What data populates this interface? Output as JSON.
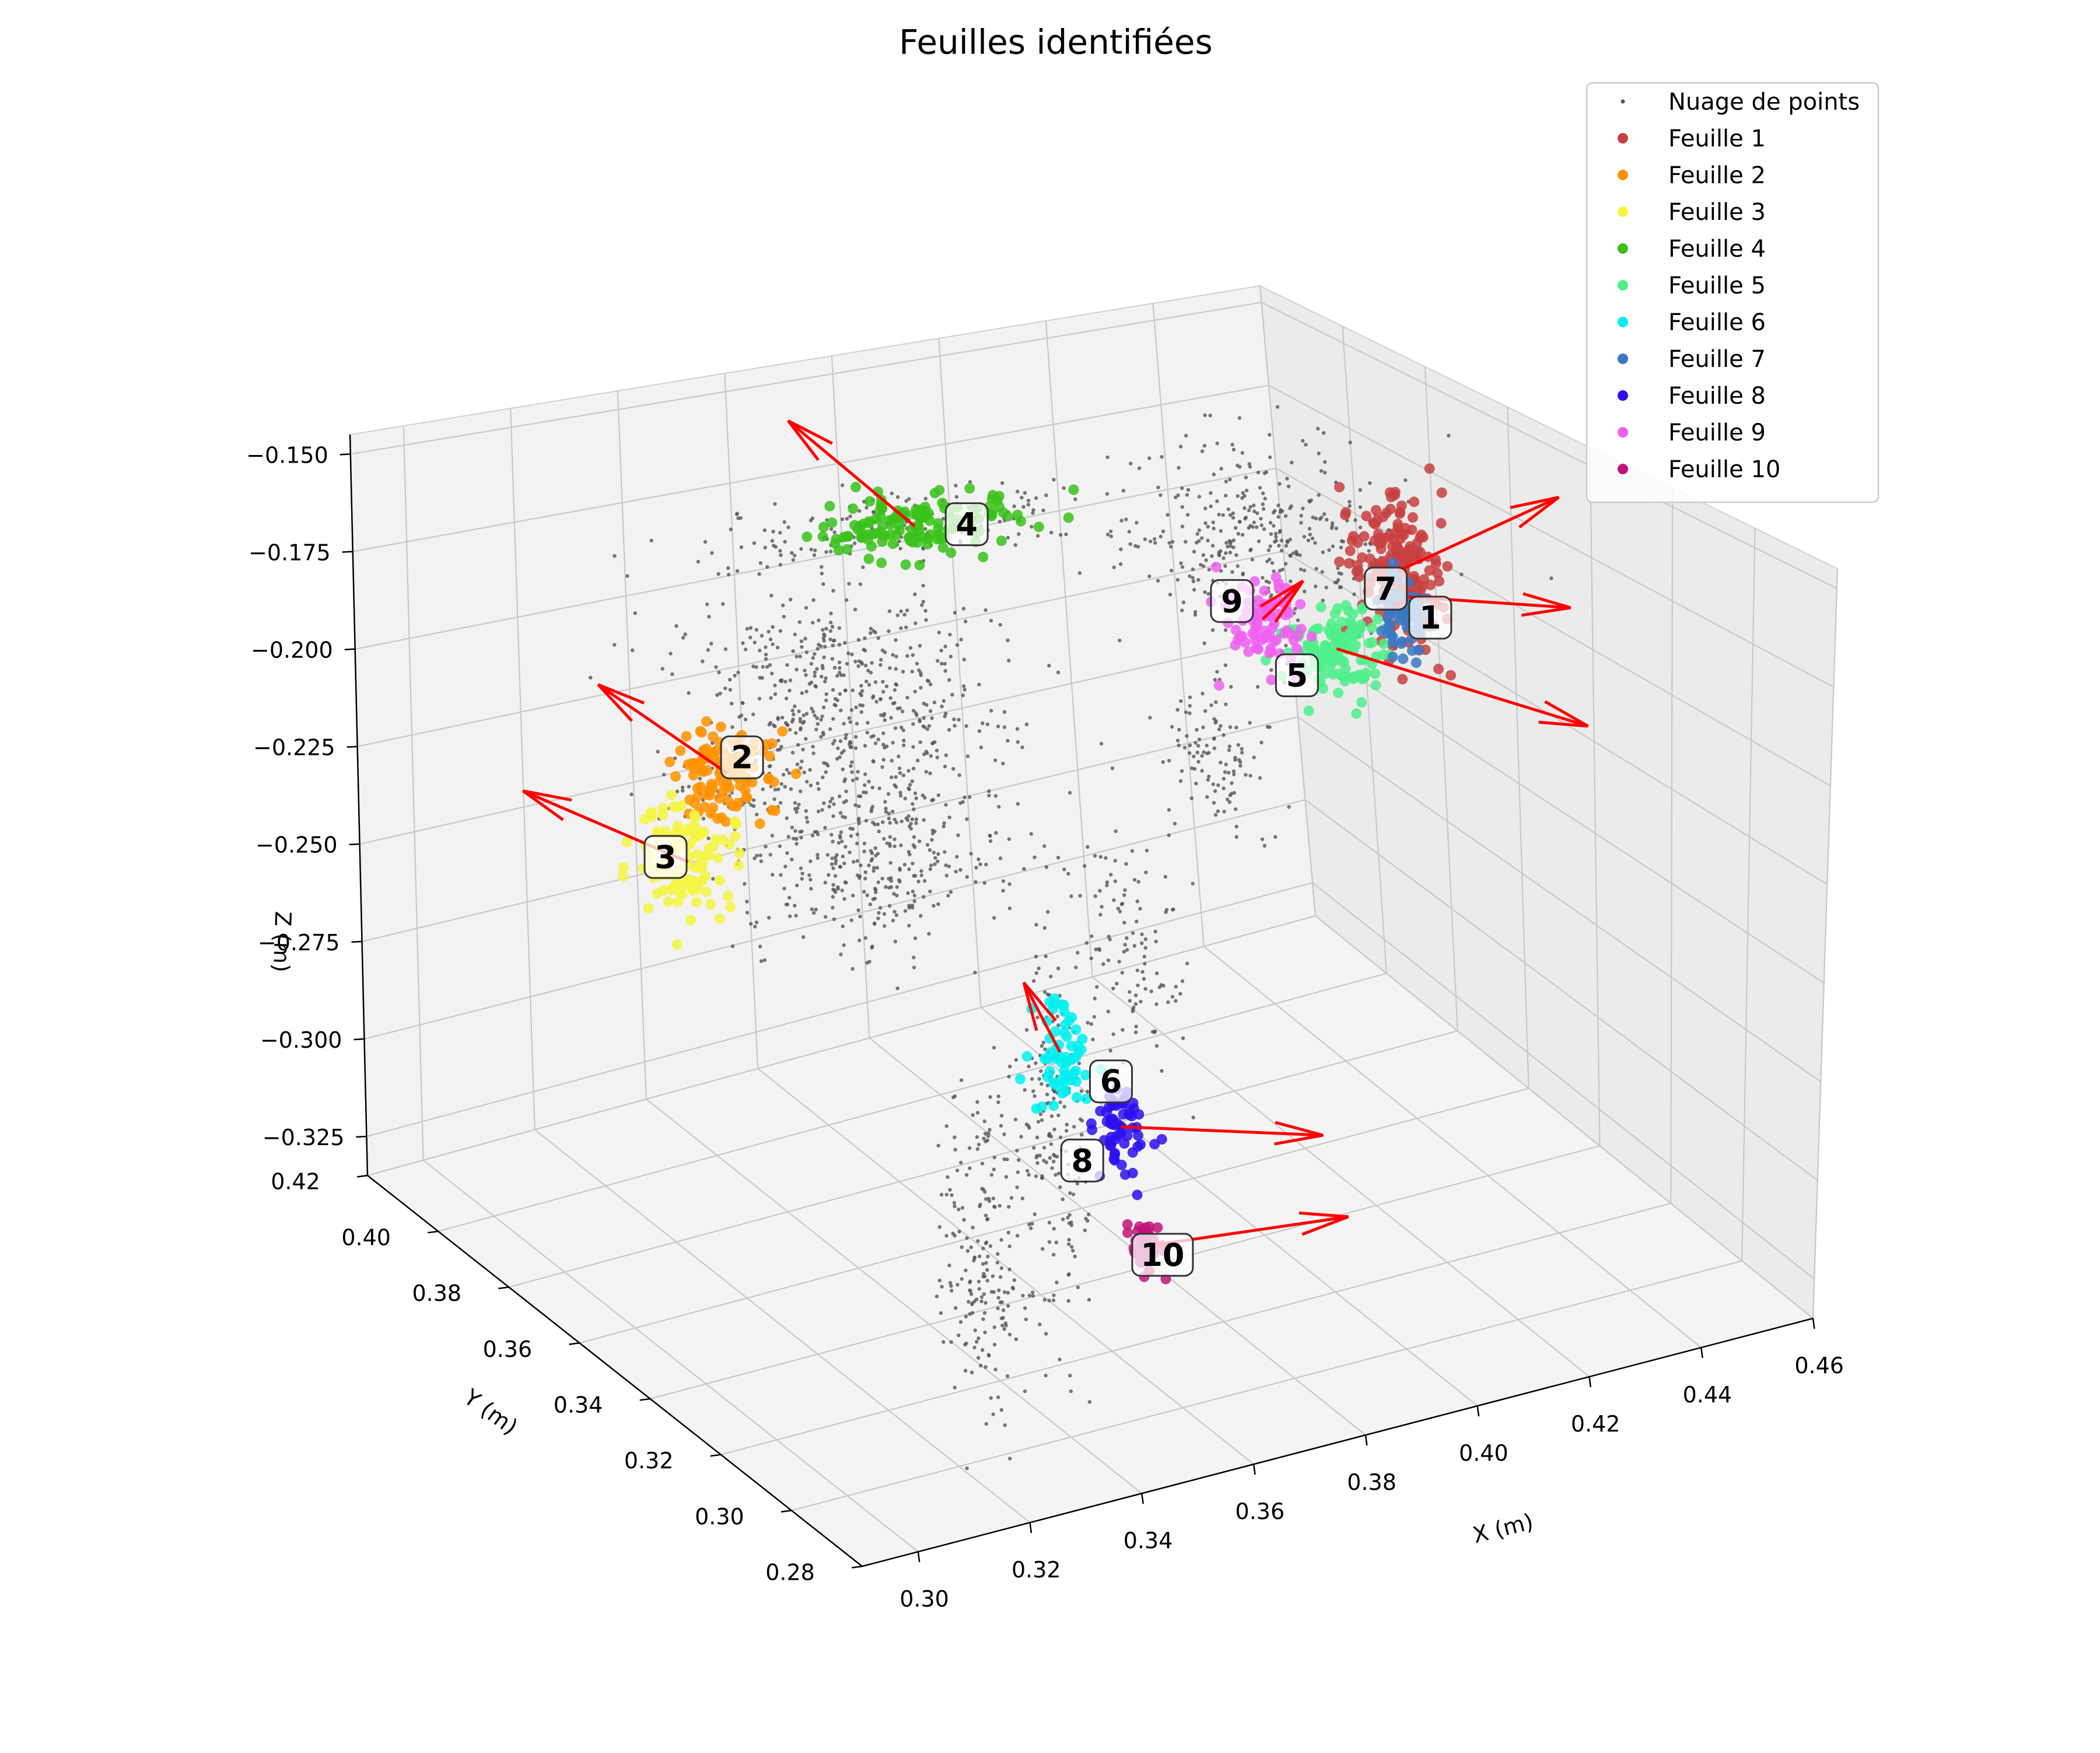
{
  "chart_data": {
    "type": "scatter",
    "projection": "3d",
    "title": "Feuilles identifiées",
    "xlabel": "X (m)",
    "ylabel": "Y (m)",
    "zlabel": "Z (m)",
    "xlim": [
      0.29,
      0.46
    ],
    "ylim": [
      0.28,
      0.42
    ],
    "zlim": [
      -0.335,
      -0.145
    ],
    "x_ticks": [
      0.3,
      0.32,
      0.34,
      0.36,
      0.38,
      0.4,
      0.42,
      0.44,
      0.46
    ],
    "x_tick_labels": [
      "0.30",
      "0.32",
      "0.34",
      "0.36",
      "0.38",
      "0.40",
      "0.42",
      "0.44",
      "0.46"
    ],
    "y_ticks": [
      0.28,
      0.3,
      0.32,
      0.34,
      0.36,
      0.38,
      0.4,
      0.42
    ],
    "y_tick_labels": [
      "0.28",
      "0.30",
      "0.32",
      "0.34",
      "0.36",
      "0.38",
      "0.40",
      "0.42"
    ],
    "z_ticks": [
      -0.325,
      -0.3,
      -0.275,
      -0.25,
      -0.225,
      -0.2,
      -0.175,
      -0.15
    ],
    "z_tick_labels": [
      "−0.325",
      "−0.300",
      "−0.275",
      "−0.250",
      "−0.225",
      "−0.200",
      "−0.175",
      "−0.150"
    ],
    "grid": true,
    "legend_position": "top-right",
    "point_cloud": {
      "name": "Nuage de points",
      "color": "#555555",
      "regions": [
        {
          "center": [
            0.345,
            0.355,
            -0.155
          ],
          "spread": [
            0.018,
            0.004,
            0.004
          ],
          "count": 170
        },
        {
          "center": [
            0.34,
            0.36,
            -0.195
          ],
          "spread": [
            0.012,
            0.012,
            0.01
          ],
          "count": 420
        },
        {
          "center": [
            0.343,
            0.36,
            -0.225
          ],
          "spread": [
            0.012,
            0.012,
            0.012
          ],
          "count": 300
        },
        {
          "center": [
            0.337,
            0.35,
            -0.235
          ],
          "spread": [
            0.01,
            0.006,
            0.008
          ],
          "count": 150
        },
        {
          "center": [
            0.337,
            0.32,
            -0.305
          ],
          "spread": [
            0.003,
            0.003,
            0.02
          ],
          "count": 200
        },
        {
          "center": [
            0.349,
            0.318,
            -0.28
          ],
          "spread": [
            0.003,
            0.003,
            0.022
          ],
          "count": 200
        },
        {
          "center": [
            0.39,
            0.36,
            -0.27
          ],
          "spread": [
            0.004,
            0.004,
            0.015
          ],
          "count": 110
        },
        {
          "center": [
            0.432,
            0.382,
            -0.19
          ],
          "spread": [
            0.012,
            0.01,
            0.012
          ],
          "count": 380
        },
        {
          "center": [
            0.416,
            0.376,
            -0.24
          ],
          "spread": [
            0.004,
            0.004,
            0.01
          ],
          "count": 110
        },
        {
          "center": [
            0.312,
            0.345,
            -0.208
          ],
          "spread": [
            0.008,
            0.004,
            0.006
          ],
          "count": 70
        }
      ]
    },
    "series": [
      {
        "name": "Feuille 1",
        "color": "#c94040",
        "center": [
          0.452,
          0.378,
          -0.2
        ],
        "spread": [
          0.003,
          0.003,
          0.01
        ],
        "count": 200
      },
      {
        "name": "Feuille 2",
        "color": "#ff9200",
        "center": [
          0.312,
          0.35,
          -0.205
        ],
        "spread": [
          0.004,
          0.003,
          0.005
        ],
        "count": 110
      },
      {
        "name": "Feuille 3",
        "color": "#f5f542",
        "center": [
          0.306,
          0.352,
          -0.225
        ],
        "spread": [
          0.004,
          0.003,
          0.006
        ],
        "count": 110
      },
      {
        "name": "Feuille 4",
        "color": "#3ac21a",
        "center": [
          0.353,
          0.36,
          -0.158
        ],
        "spread": [
          0.009,
          0.003,
          0.003
        ],
        "count": 140
      },
      {
        "name": "Feuille 5",
        "color": "#4ef08a",
        "center": [
          0.443,
          0.382,
          -0.222
        ],
        "spread": [
          0.004,
          0.003,
          0.006
        ],
        "count": 120
      },
      {
        "name": "Feuille 6",
        "color": "#00f0f0",
        "center": [
          0.35,
          0.318,
          -0.262
        ],
        "spread": [
          0.002,
          0.002,
          0.006
        ],
        "count": 60
      },
      {
        "name": "Feuille 7",
        "color": "#3a78c6",
        "center": [
          0.451,
          0.376,
          -0.21
        ],
        "spread": [
          0.002,
          0.002,
          0.005
        ],
        "count": 60
      },
      {
        "name": "Feuille 8",
        "color": "#2a0ff0",
        "center": [
          0.381,
          0.35,
          -0.308
        ],
        "spread": [
          0.002,
          0.002,
          0.005
        ],
        "count": 60
      },
      {
        "name": "Feuille 9",
        "color": "#f060f0",
        "center": [
          0.434,
          0.388,
          -0.215
        ],
        "spread": [
          0.003,
          0.003,
          0.006
        ],
        "count": 90
      },
      {
        "name": "Feuille 10",
        "color": "#c0147a",
        "center": [
          0.379,
          0.34,
          -0.33
        ],
        "spread": [
          0.001,
          0.002,
          0.003
        ],
        "count": 50
      }
    ],
    "leaf_labels": [
      {
        "text": "1",
        "position": [
          0.456,
          0.376,
          -0.213
        ]
      },
      {
        "text": "2",
        "position": [
          0.316,
          0.352,
          -0.203
        ]
      },
      {
        "text": "3",
        "position": [
          0.302,
          0.352,
          -0.223
        ]
      },
      {
        "text": "4",
        "position": [
          0.361,
          0.358,
          -0.158
        ]
      },
      {
        "text": "5",
        "position": [
          0.437,
          0.384,
          -0.229
        ]
      },
      {
        "text": "6",
        "position": [
          0.359,
          0.318,
          -0.271
        ]
      },
      {
        "text": "7",
        "position": [
          0.451,
          0.38,
          -0.206
        ]
      },
      {
        "text": "8",
        "position": [
          0.374,
          0.35,
          -0.314
        ]
      },
      {
        "text": "9",
        "position": [
          0.43,
          0.39,
          -0.21
        ]
      },
      {
        "text": "10",
        "position": [
          0.383,
          0.342,
          -0.335
        ]
      }
    ],
    "normal_vectors": {
      "color": "#ff0000",
      "vectors": [
        {
          "from": [
            0.452,
            0.378,
            -0.2
          ],
          "to": [
            0.49,
            0.39,
            -0.197
          ]
        },
        {
          "from": [
            0.452,
            0.376,
            -0.206
          ],
          "to": [
            0.484,
            0.38,
            -0.221
          ]
        },
        {
          "from": [
            0.312,
            0.35,
            -0.205
          ],
          "to": [
            0.278,
            0.332,
            -0.173
          ]
        },
        {
          "from": [
            0.306,
            0.352,
            -0.225
          ],
          "to": [
            0.273,
            0.346,
            -0.2
          ]
        },
        {
          "from": [
            0.353,
            0.36,
            -0.158
          ],
          "to": [
            0.332,
            0.362,
            -0.13
          ]
        },
        {
          "from": [
            0.443,
            0.382,
            -0.222
          ],
          "to": [
            0.478,
            0.368,
            -0.245
          ]
        },
        {
          "from": [
            0.35,
            0.318,
            -0.262
          ],
          "to": [
            0.345,
            0.32,
            -0.246
          ]
        },
        {
          "from": [
            0.381,
            0.35,
            -0.308
          ],
          "to": [
            0.417,
            0.35,
            -0.323
          ]
        },
        {
          "from": [
            0.434,
            0.388,
            -0.215
          ],
          "to": [
            0.443,
            0.39,
            -0.208
          ]
        },
        {
          "from": [
            0.379,
            0.34,
            -0.33
          ],
          "to": [
            0.415,
            0.34,
            -0.336
          ]
        }
      ]
    }
  }
}
